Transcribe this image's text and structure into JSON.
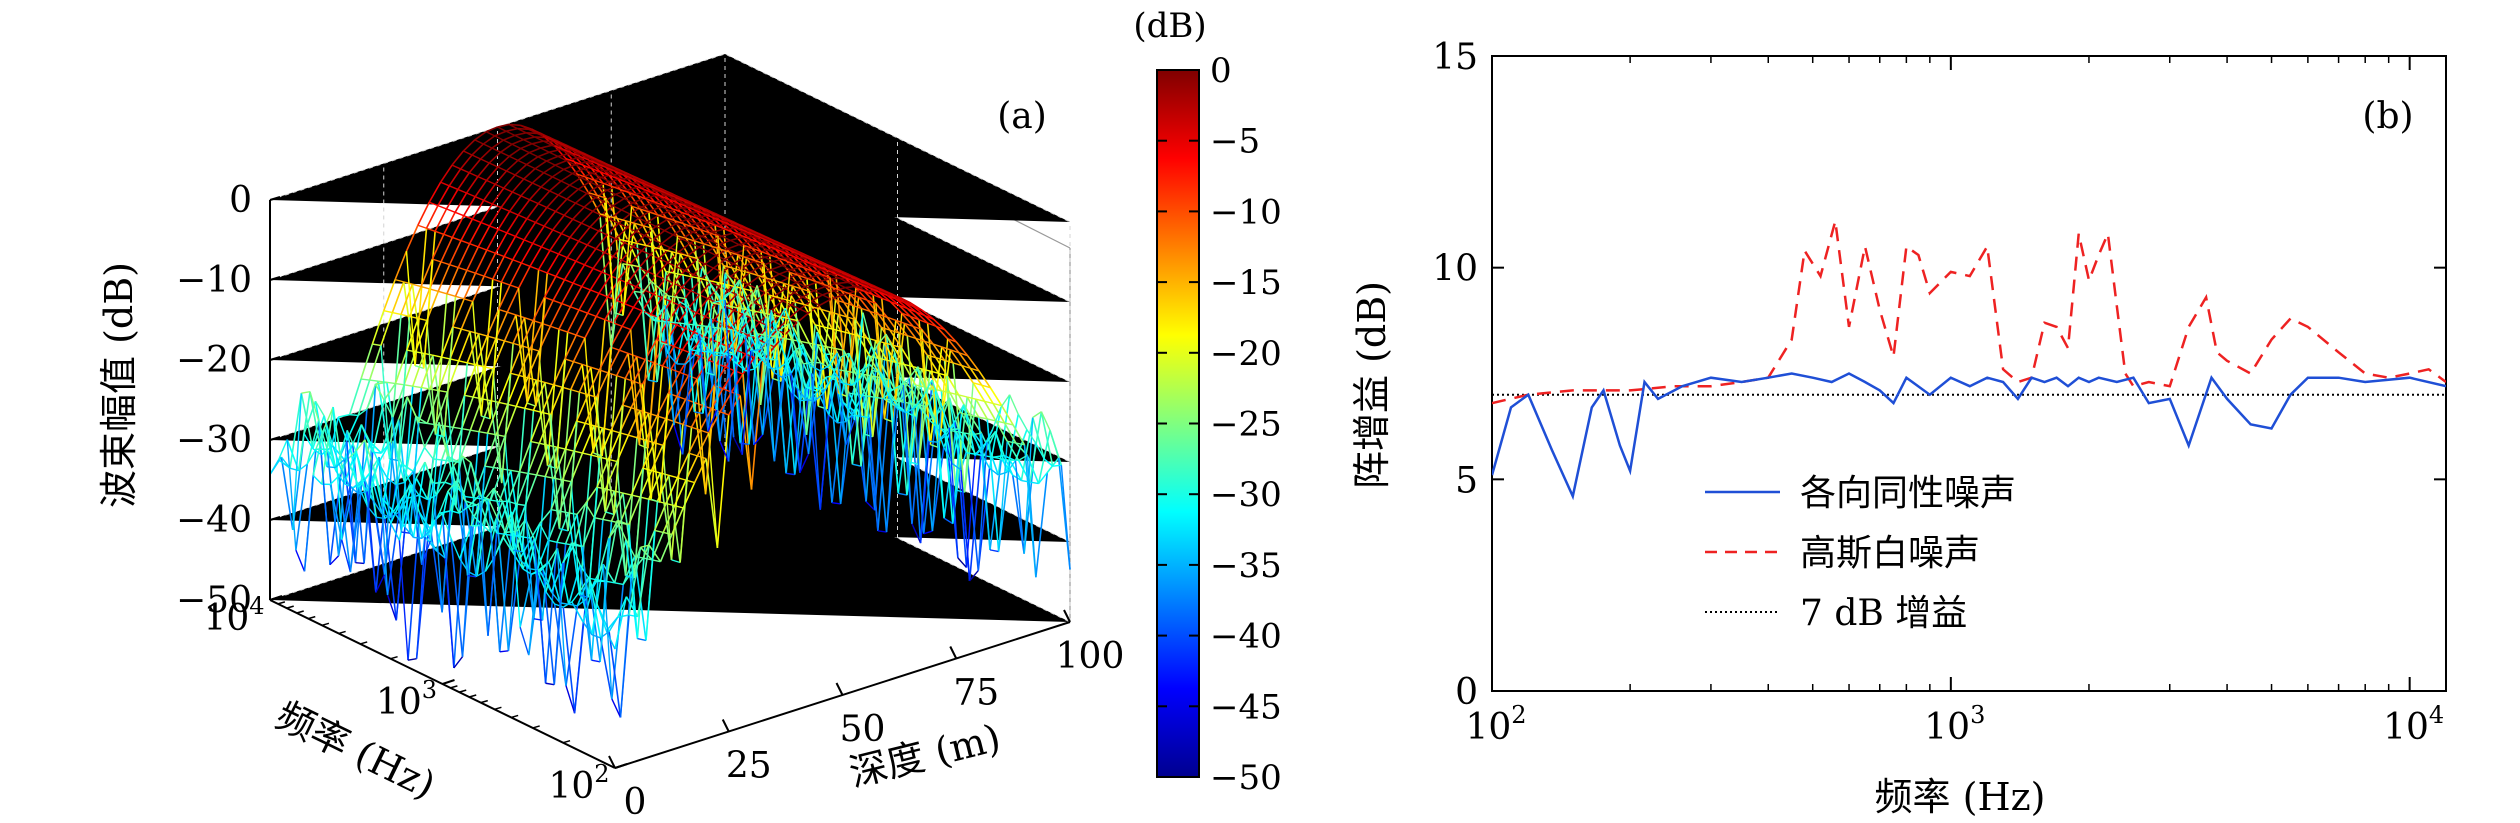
{
  "panel_a": {
    "label": "(a)",
    "zlabel": "波束幅值 (dB)",
    "freq_axis_label": "频率 (Hz)",
    "depth_axis_label": "深度 (m)",
    "z_ticks": [
      "0",
      "−10",
      "−20",
      "−30",
      "−40",
      "−50"
    ],
    "freq_ticks": [
      {
        "base": "10",
        "exp": "4"
      },
      {
        "base": "10",
        "exp": "3"
      },
      {
        "base": "10",
        "exp": "2"
      }
    ],
    "depth_ticks": [
      "0",
      "25",
      "50",
      "75",
      "100"
    ],
    "colorbar": {
      "unit": "(dB)",
      "ticks": [
        "0",
        "−5",
        "−10",
        "−15",
        "−20",
        "−25",
        "−30",
        "−35",
        "−40",
        "−45",
        "−50"
      ]
    }
  },
  "panel_b": {
    "label": "(b)",
    "xlabel": "频率 (Hz)",
    "ylabel": "阵增益 (dB)",
    "x_ticks": [
      {
        "base": "10",
        "exp": "2"
      },
      {
        "base": "10",
        "exp": "3"
      },
      {
        "base": "10",
        "exp": "4"
      }
    ],
    "y_ticks": [
      "0",
      "5",
      "10",
      "15"
    ],
    "legend": [
      "各向同性噪声",
      "高斯白噪声",
      "7 dB 增益"
    ]
  },
  "chart_data": [
    {
      "type": "heatmap",
      "title": "(a)",
      "xlabel": "深度 (m)",
      "ylabel": "频率 (Hz)",
      "zlabel": "波束幅值 (dB)",
      "x_range": [
        0,
        100
      ],
      "y_range": [
        100,
        10000
      ],
      "y_scale": "log",
      "z_range": [
        -50,
        0
      ],
      "colormap": "jet",
      "colorbar_range": [
        -50,
        0
      ],
      "peak_depth_m": 50,
      "peak_value_db": 0
    },
    {
      "type": "line",
      "title": "(b)",
      "xlabel": "频率 (Hz)",
      "ylabel": "阵增益 (dB)",
      "x_scale": "log",
      "xlim": [
        100,
        12000
      ],
      "ylim": [
        0,
        15
      ],
      "legend_position": "center-left",
      "series": [
        {
          "name": "各向同性噪声",
          "color": "#1f4fd6",
          "dash": "solid",
          "x": [
            100,
            110,
            120,
            135,
            150,
            165,
            175,
            190,
            200,
            215,
            230,
            260,
            300,
            350,
            400,
            450,
            500,
            550,
            600,
            650,
            700,
            750,
            800,
            900,
            1000,
            1100,
            1200,
            1300,
            1400,
            1500,
            1600,
            1700,
            1800,
            1900,
            2000,
            2100,
            2300,
            2500,
            2700,
            3000,
            3300,
            3700,
            4000,
            4500,
            5000,
            5500,
            6000,
            7000,
            8000,
            10000,
            12000
          ],
          "y": [
            5.1,
            6.7,
            7.0,
            5.7,
            4.6,
            6.7,
            7.1,
            5.8,
            5.2,
            7.3,
            6.9,
            7.2,
            7.4,
            7.3,
            7.4,
            7.5,
            7.4,
            7.3,
            7.5,
            7.3,
            7.1,
            6.8,
            7.4,
            7.0,
            7.4,
            7.2,
            7.4,
            7.3,
            6.9,
            7.4,
            7.3,
            7.4,
            7.2,
            7.4,
            7.3,
            7.4,
            7.3,
            7.4,
            6.8,
            6.9,
            5.8,
            7.4,
            6.9,
            6.3,
            6.2,
            7.0,
            7.4,
            7.4,
            7.3,
            7.4,
            7.2
          ]
        },
        {
          "name": "高斯白噪声",
          "color": "#ee2222",
          "dash": "dashed",
          "x": [
            100,
            120,
            150,
            200,
            250,
            300,
            350,
            400,
            450,
            480,
            520,
            560,
            600,
            650,
            700,
            750,
            800,
            850,
            900,
            1000,
            1100,
            1200,
            1300,
            1400,
            1500,
            1600,
            1700,
            1800,
            1900,
            2000,
            2100,
            2200,
            2300,
            2400,
            2500,
            2700,
            3000,
            3300,
            3600,
            3800,
            4000,
            4500,
            5000,
            5500,
            6000,
            7000,
            8000,
            9000,
            10000,
            11000,
            12000
          ],
          "y": [
            6.8,
            7.0,
            7.1,
            7.1,
            7.2,
            7.2,
            7.3,
            7.4,
            8.3,
            10.4,
            9.8,
            11.1,
            8.6,
            10.5,
            9.0,
            7.9,
            10.5,
            10.3,
            9.4,
            9.9,
            9.8,
            10.5,
            7.6,
            7.3,
            7.4,
            8.7,
            8.6,
            8.1,
            10.8,
            9.7,
            10.3,
            10.8,
            9.1,
            7.5,
            7.2,
            7.3,
            7.2,
            8.6,
            9.3,
            8.0,
            7.8,
            7.5,
            8.3,
            8.8,
            8.6,
            8.0,
            7.5,
            7.4,
            7.5,
            7.6,
            7.3
          ]
        },
        {
          "name": "7 dB 增益",
          "color": "#000000",
          "dash": "dotted",
          "x": [
            100,
            12000
          ],
          "y": [
            7,
            7
          ]
        }
      ]
    }
  ]
}
